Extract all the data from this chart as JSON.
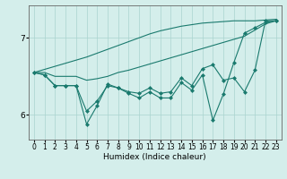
{
  "xlabel": "Humidex (Indice chaleur)",
  "ylabel": "",
  "background_color": "#d4eeeb",
  "grid_color": "#aad4cf",
  "line_color": "#1a7a6e",
  "x": [
    0,
    1,
    2,
    3,
    4,
    5,
    6,
    7,
    8,
    9,
    10,
    11,
    12,
    13,
    14,
    15,
    16,
    17,
    18,
    19,
    20,
    21,
    22,
    23
  ],
  "line_zigzag1": [
    6.55,
    6.52,
    6.38,
    6.38,
    6.38,
    5.88,
    6.12,
    6.4,
    6.35,
    6.28,
    6.22,
    6.3,
    6.22,
    6.22,
    6.42,
    6.32,
    6.52,
    5.93,
    6.27,
    6.68,
    7.06,
    7.13,
    7.2,
    7.22
  ],
  "line_zigzag2": [
    6.55,
    6.52,
    6.38,
    6.38,
    6.38,
    6.05,
    6.18,
    6.38,
    6.35,
    6.3,
    6.28,
    6.35,
    6.28,
    6.3,
    6.48,
    6.38,
    6.6,
    6.65,
    6.45,
    6.48,
    6.3,
    6.58,
    7.22,
    7.22
  ],
  "line_upper": [
    6.55,
    6.59,
    6.63,
    6.67,
    6.71,
    6.75,
    6.8,
    6.85,
    6.9,
    6.95,
    7.0,
    7.05,
    7.09,
    7.12,
    7.15,
    7.17,
    7.19,
    7.2,
    7.21,
    7.22,
    7.22,
    7.22,
    7.23,
    7.24
  ],
  "line_lower": [
    6.55,
    6.55,
    6.5,
    6.5,
    6.5,
    6.45,
    6.47,
    6.5,
    6.55,
    6.58,
    6.62,
    6.66,
    6.7,
    6.74,
    6.78,
    6.82,
    6.86,
    6.9,
    6.94,
    6.98,
    7.02,
    7.1,
    7.18,
    7.22
  ],
  "ylim": [
    5.68,
    7.42
  ],
  "yticks": [
    6,
    7
  ],
  "xticks": [
    0,
    1,
    2,
    3,
    4,
    5,
    6,
    7,
    8,
    9,
    10,
    11,
    12,
    13,
    14,
    15,
    16,
    17,
    18,
    19,
    20,
    21,
    22,
    23
  ]
}
